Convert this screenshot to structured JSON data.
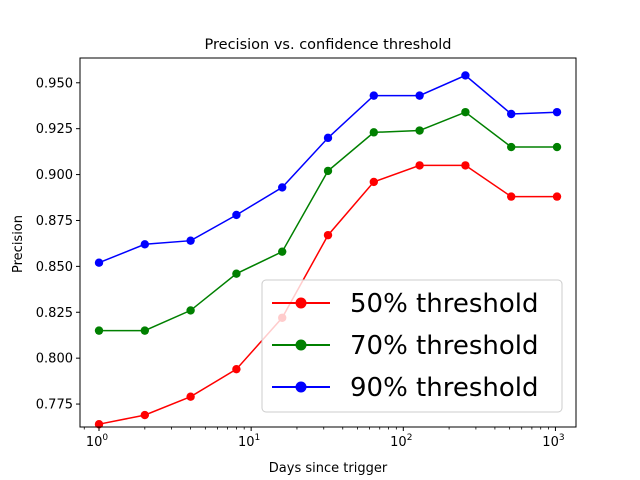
{
  "chart_data": {
    "type": "line",
    "title": "Precision vs. confidence threshold",
    "xlabel": "Days since trigger",
    "ylabel": "Precision",
    "xscale": "log",
    "x": [
      1,
      2,
      4,
      8,
      16,
      32,
      64,
      128,
      256,
      512,
      1024
    ],
    "xlim": [
      0.75,
      1365
    ],
    "ylim": [
      0.7625,
      0.9635
    ],
    "x_ticks": [
      {
        "value": 1,
        "base": "10",
        "exp": "0"
      },
      {
        "value": 10,
        "base": "10",
        "exp": "1"
      },
      {
        "value": 100,
        "base": "10",
        "exp": "2"
      },
      {
        "value": 1000,
        "base": "10",
        "exp": "3"
      }
    ],
    "y_ticks": [
      "0.775",
      "0.800",
      "0.825",
      "0.850",
      "0.875",
      "0.900",
      "0.925",
      "0.950"
    ],
    "series": [
      {
        "name": "50% threshold",
        "color": "#ff0000",
        "values": [
          0.764,
          0.769,
          0.779,
          0.794,
          0.822,
          0.867,
          0.896,
          0.905,
          0.905,
          0.888,
          0.888
        ]
      },
      {
        "name": "70% threshold",
        "color": "#008000",
        "values": [
          0.815,
          0.815,
          0.826,
          0.846,
          0.858,
          0.902,
          0.923,
          0.924,
          0.934,
          0.915,
          0.915
        ]
      },
      {
        "name": "90% threshold",
        "color": "#0000ff",
        "values": [
          0.852,
          0.862,
          0.864,
          0.878,
          0.893,
          0.92,
          0.943,
          0.943,
          0.954,
          0.933,
          0.934
        ]
      }
    ],
    "legend": "lower-right",
    "grid": false
  }
}
